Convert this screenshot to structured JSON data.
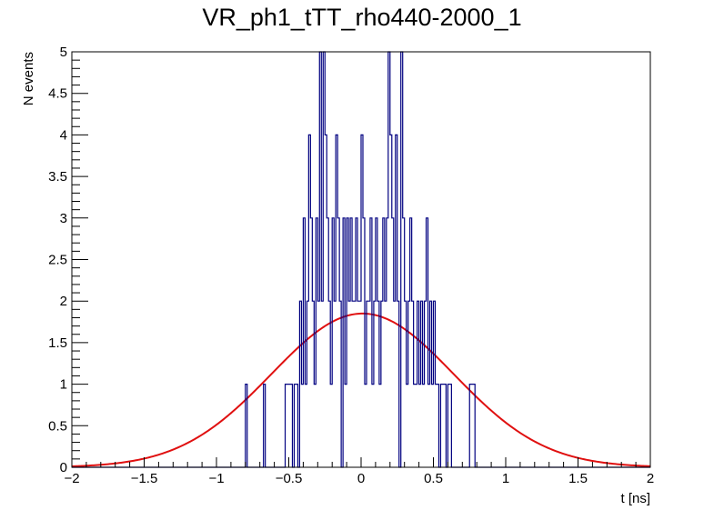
{
  "chart_data": {
    "type": "histogram",
    "title": "VR_ph1_tTT_rho440-2000_1",
    "xlabel": "t [ns]",
    "ylabel": "N events",
    "xlim": [
      -2,
      2
    ],
    "ylim": [
      0,
      5
    ],
    "x_ticks": [
      {
        "v": -2,
        "label": "−2"
      },
      {
        "v": -1.5,
        "label": "−1.5"
      },
      {
        "v": -1,
        "label": "−1"
      },
      {
        "v": -0.5,
        "label": "−0.5"
      },
      {
        "v": 0,
        "label": "0"
      },
      {
        "v": 0.5,
        "label": "0.5"
      },
      {
        "v": 1,
        "label": "1"
      },
      {
        "v": 1.5,
        "label": "1.5"
      },
      {
        "v": 2,
        "label": "2"
      }
    ],
    "y_ticks": [
      {
        "v": 0,
        "label": "0"
      },
      {
        "v": 0.5,
        "label": "0.5"
      },
      {
        "v": 1,
        "label": "1"
      },
      {
        "v": 1.5,
        "label": "1.5"
      },
      {
        "v": 2,
        "label": "2"
      },
      {
        "v": 2.5,
        "label": "2.5"
      },
      {
        "v": 3,
        "label": "3"
      },
      {
        "v": 3.5,
        "label": "3.5"
      },
      {
        "v": 4,
        "label": "4"
      },
      {
        "v": 4.5,
        "label": "4.5"
      },
      {
        "v": 5,
        "label": "5"
      }
    ],
    "histogram": {
      "color": "#000080",
      "bin_width": 0.0125,
      "bins": [
        [
          -0.8,
          1
        ],
        [
          -0.675,
          1
        ],
        [
          -0.525,
          1
        ],
        [
          -0.5125,
          1
        ],
        [
          -0.5,
          1
        ],
        [
          -0.4875,
          1
        ],
        [
          -0.4625,
          1
        ],
        [
          -0.45,
          1
        ],
        [
          -0.425,
          2
        ],
        [
          -0.4125,
          1
        ],
        [
          -0.4,
          3
        ],
        [
          -0.3875,
          1
        ],
        [
          -0.375,
          2
        ],
        [
          -0.3625,
          4
        ],
        [
          -0.35,
          3
        ],
        [
          -0.3375,
          2
        ],
        [
          -0.325,
          1
        ],
        [
          -0.3125,
          3
        ],
        [
          -0.3,
          2
        ],
        [
          -0.2875,
          5
        ],
        [
          -0.275,
          2
        ],
        [
          -0.2625,
          5
        ],
        [
          -0.25,
          4
        ],
        [
          -0.2375,
          3
        ],
        [
          -0.225,
          2
        ],
        [
          -0.2125,
          1
        ],
        [
          -0.2,
          3
        ],
        [
          -0.1875,
          2
        ],
        [
          -0.175,
          4
        ],
        [
          -0.1625,
          3
        ],
        [
          -0.15,
          2
        ],
        [
          -0.1375,
          0
        ],
        [
          -0.125,
          3
        ],
        [
          -0.1125,
          1
        ],
        [
          -0.1,
          3
        ],
        [
          -0.0875,
          2
        ],
        [
          -0.075,
          3
        ],
        [
          -0.0625,
          2
        ],
        [
          -0.05,
          2
        ],
        [
          -0.0375,
          3
        ],
        [
          -0.025,
          2
        ],
        [
          -0.0125,
          2
        ],
        [
          0.0,
          4
        ],
        [
          0.0125,
          3
        ],
        [
          0.025,
          1
        ],
        [
          0.0375,
          2
        ],
        [
          0.05,
          2
        ],
        [
          0.0625,
          3
        ],
        [
          0.075,
          1
        ],
        [
          0.0875,
          2
        ],
        [
          0.1,
          3
        ],
        [
          0.1125,
          2
        ],
        [
          0.125,
          1
        ],
        [
          0.1375,
          2
        ],
        [
          0.15,
          3
        ],
        [
          0.1625,
          2
        ],
        [
          0.175,
          3
        ],
        [
          0.1875,
          5
        ],
        [
          0.2,
          4
        ],
        [
          0.2125,
          3
        ],
        [
          0.225,
          2
        ],
        [
          0.2375,
          4
        ],
        [
          0.25,
          2
        ],
        [
          0.2625,
          0
        ],
        [
          0.275,
          5
        ],
        [
          0.2875,
          3
        ],
        [
          0.3,
          2
        ],
        [
          0.3125,
          1
        ],
        [
          0.325,
          2
        ],
        [
          0.3375,
          3
        ],
        [
          0.35,
          2
        ],
        [
          0.3625,
          1
        ],
        [
          0.375,
          1
        ],
        [
          0.3875,
          2
        ],
        [
          0.4,
          1
        ],
        [
          0.4125,
          2
        ],
        [
          0.425,
          1
        ],
        [
          0.4375,
          2
        ],
        [
          0.45,
          3
        ],
        [
          0.4625,
          1
        ],
        [
          0.475,
          2
        ],
        [
          0.4875,
          1
        ],
        [
          0.5,
          2
        ],
        [
          0.5125,
          1
        ],
        [
          0.525,
          1
        ],
        [
          0.55,
          1
        ],
        [
          0.5625,
          1
        ],
        [
          0.575,
          1
        ],
        [
          0.6,
          1
        ],
        [
          0.6125,
          1
        ],
        [
          0.75,
          1
        ],
        [
          0.7625,
          1
        ],
        [
          0.775,
          1
        ]
      ]
    },
    "fit": {
      "type": "gaussian",
      "color": "#e01010",
      "amplitude": 1.85,
      "mean": 0.01,
      "sigma": 0.63
    }
  }
}
